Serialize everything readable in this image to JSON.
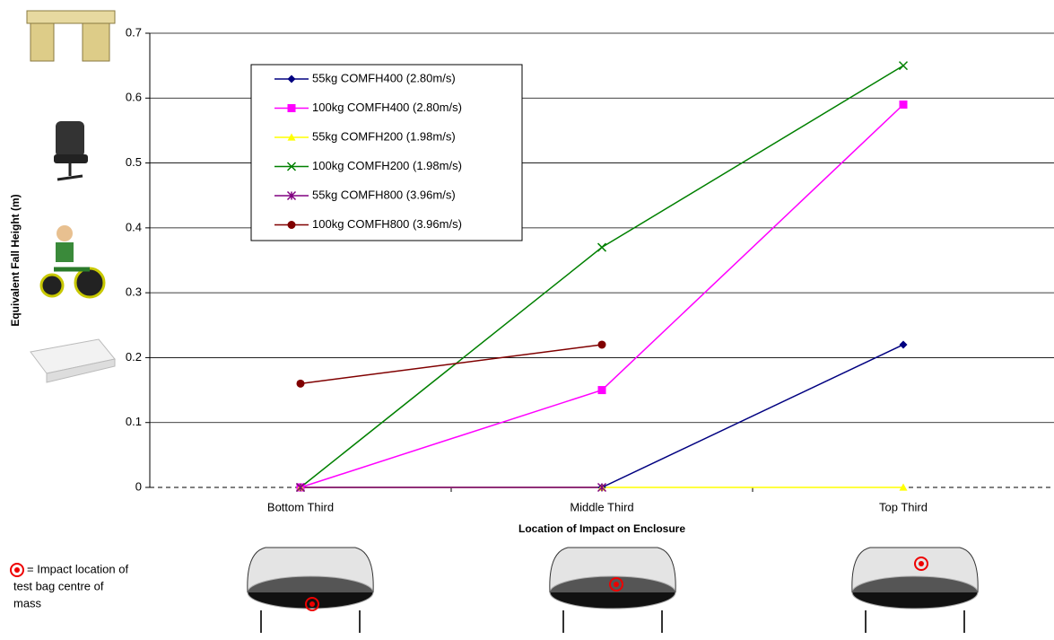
{
  "chart_data": {
    "type": "line",
    "y_label": "Equivalent Fall Height (m)",
    "x_label": "Location of Impact on Enclosure",
    "categories": [
      "Bottom Third",
      "Middle Third",
      "Top Third"
    ],
    "series": [
      {
        "name": "55kg COMFH400 (2.80m/s)",
        "color": "#000080",
        "marker": "diamond",
        "values": [
          0,
          0,
          0.22
        ]
      },
      {
        "name": "100kg COMFH400 (2.80m/s)",
        "color": "#ff00ff",
        "marker": "square",
        "values": [
          0,
          0.15,
          0.59
        ]
      },
      {
        "name": "55kg COMFH200 (1.98m/s)",
        "color": "#ffff00",
        "marker": "triangle",
        "values": [
          0,
          0,
          0
        ]
      },
      {
        "name": "100kg COMFH200 (1.98m/s)",
        "color": "#008000",
        "marker": "x",
        "values": [
          0,
          0.37,
          0.65
        ]
      },
      {
        "name": "55kg COMFH800 (3.96m/s)",
        "color": "#800080",
        "marker": "star",
        "values": [
          0,
          0,
          null
        ]
      },
      {
        "name": "100kg COMFH800 (3.96m/s)",
        "color": "#800000",
        "marker": "circle",
        "values": [
          0.16,
          0.22,
          null
        ]
      }
    ],
    "ylim": [
      0,
      0.7
    ],
    "yticks": [
      0,
      0.1,
      0.2,
      0.3,
      0.4,
      0.5,
      0.6,
      0.7
    ],
    "grid": true,
    "annotation": [
      "= Impact location of",
      "test bag centre of",
      "mass"
    ]
  }
}
